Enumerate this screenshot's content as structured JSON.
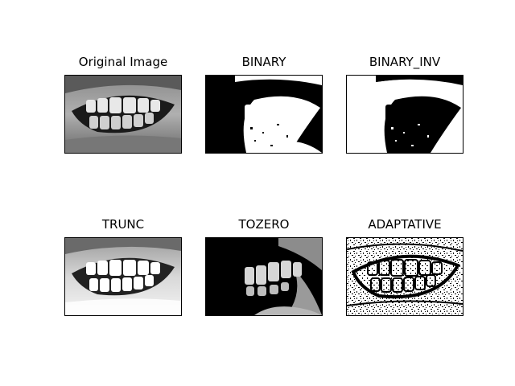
{
  "figure": {
    "panels": [
      {
        "id": "original",
        "title": "Original Image"
      },
      {
        "id": "binary",
        "title": "BINARY"
      },
      {
        "id": "binary_inv",
        "title": "BINARY_INV"
      },
      {
        "id": "trunc",
        "title": "TRUNC"
      },
      {
        "id": "tozero",
        "title": "TOZERO"
      },
      {
        "id": "adaptive",
        "title": "ADAPTATIVE"
      }
    ]
  },
  "colors": {
    "background": "#ffffff",
    "black": "#000000",
    "white": "#ffffff"
  }
}
